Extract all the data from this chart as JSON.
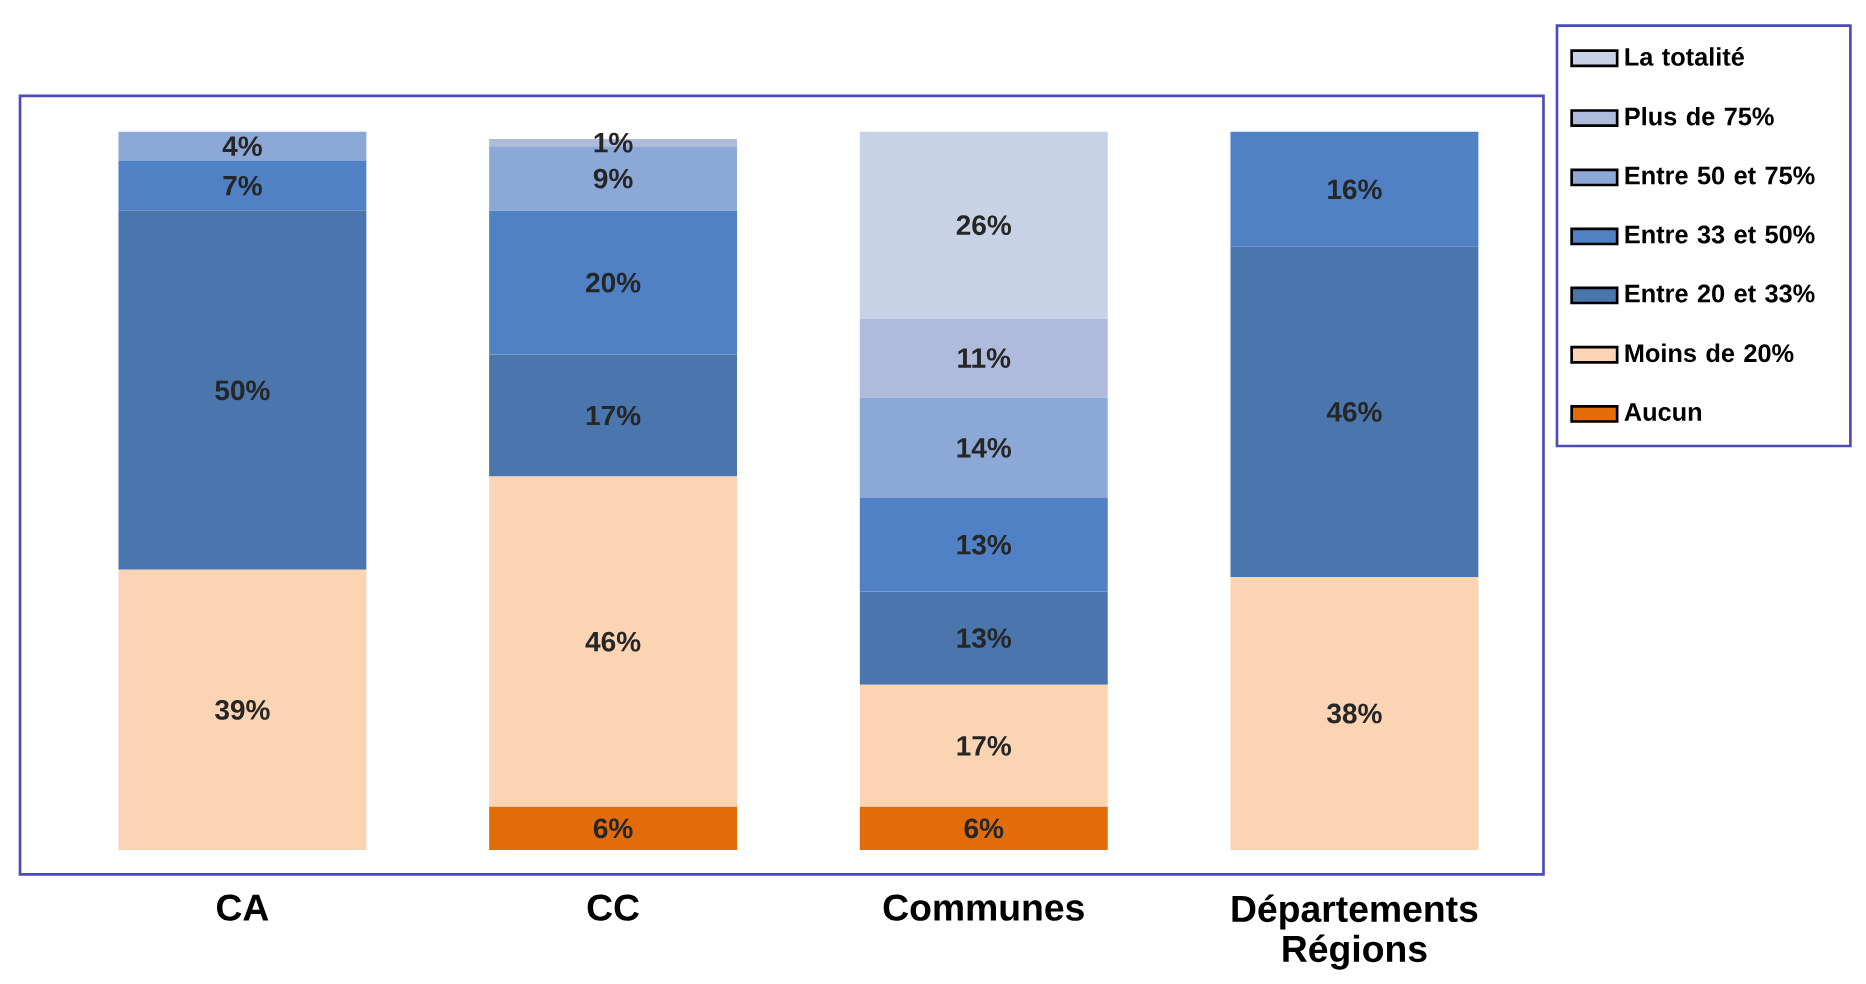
{
  "chart_data": {
    "type": "bar",
    "stacked": true,
    "legend": "right",
    "categories": [
      "CA",
      "CC",
      "Communes",
      "Départements Régions"
    ],
    "series": [
      {
        "name": "Aucun",
        "color": "#e26b0a",
        "values": [
          null,
          6,
          6,
          null
        ],
        "value_labels": [
          null,
          "6%",
          "6%",
          null
        ]
      },
      {
        "name": "Moins de 20%",
        "color": "#fbd4b4",
        "values": [
          39,
          46,
          17,
          38
        ],
        "value_labels": [
          "39%",
          "46%",
          "17%",
          "38%"
        ]
      },
      {
        "name": "Entre 20 et 33%",
        "color": "#4a76ad",
        "values": [
          50,
          17,
          13,
          46
        ],
        "value_labels": [
          "50%",
          "17%",
          "13%",
          "46%"
        ]
      },
      {
        "name": "Entre 33 et 50%",
        "color": "#4f81c4",
        "values": [
          7,
          20,
          13,
          16
        ],
        "value_labels": [
          "7%",
          "20%",
          "13%",
          "16%"
        ]
      },
      {
        "name": "Entre 50 et 75%",
        "color": "#8ca8d6",
        "values": [
          4,
          9,
          14,
          null
        ],
        "value_labels": [
          "4%",
          "9%",
          "14%",
          null
        ]
      },
      {
        "name": "Plus de 75%",
        "color": "#aebbdc",
        "values": [
          null,
          1,
          11,
          null
        ],
        "value_labels": [
          null,
          "1%",
          "11%",
          null
        ]
      },
      {
        "name": "La totalité",
        "color": "#c8d2e6",
        "values": [
          null,
          null,
          26,
          null
        ],
        "value_labels": [
          null,
          null,
          "26%",
          null
        ]
      }
    ]
  }
}
